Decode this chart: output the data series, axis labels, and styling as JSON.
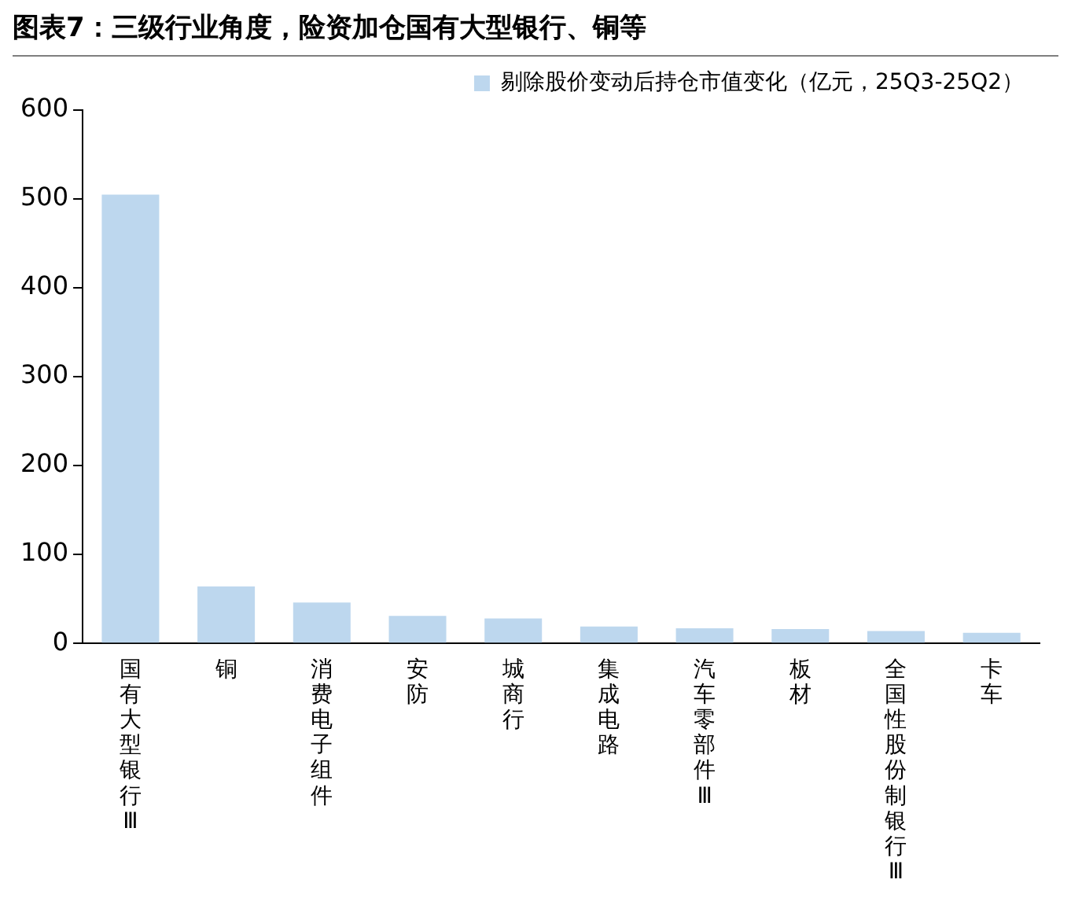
{
  "chart_data": {
    "type": "bar",
    "title": "图表7：三级行业角度，险资加仓国有大型银行、铜等",
    "categories": [
      "国有大型银行Ⅲ",
      "铜",
      "消费电子组件",
      "安防",
      "城商行",
      "集成电路",
      "汽车零部件Ⅲ",
      "板材",
      "全国性股份制银行Ⅲ",
      "卡车"
    ],
    "series": [
      {
        "name": "剔除股价变动后持仓市值变化（亿元，25Q3-25Q2）",
        "color": "#bdd7ee",
        "values": [
          505,
          64,
          46,
          31,
          28,
          19,
          17,
          16,
          14,
          12
        ]
      }
    ],
    "ylim": [
      0,
      600
    ],
    "yticks": [
      0,
      100,
      200,
      300,
      400,
      500,
      600
    ],
    "grid": false,
    "legend": "top right"
  }
}
